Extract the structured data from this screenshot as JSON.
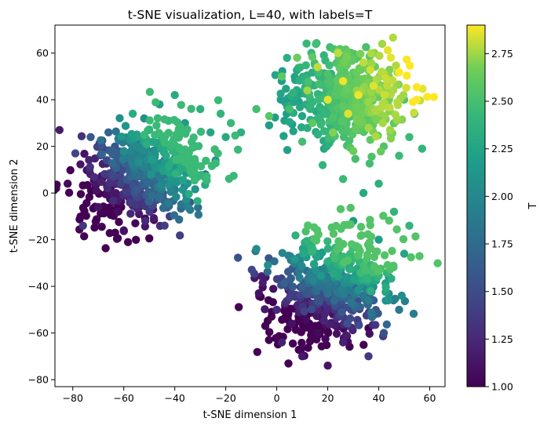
{
  "chart_data": {
    "type": "scatter",
    "title": "t-SNE visualization, L=40, with labels=T",
    "xlabel": "t-SNE dimension 1",
    "ylabel": "t-SNE dimension 2",
    "xlim": [
      -87,
      66
    ],
    "ylim": [
      -83,
      72
    ],
    "xticks": [
      -80,
      -60,
      -40,
      -20,
      0,
      20,
      40,
      60
    ],
    "yticks": [
      -80,
      -60,
      -40,
      -20,
      0,
      20,
      40,
      60
    ],
    "xtick_labels": [
      "−80",
      "−60",
      "−40",
      "−20",
      "0",
      "20",
      "40",
      "60"
    ],
    "ytick_labels": [
      "−80",
      "−60",
      "−40",
      "−20",
      "0",
      "20",
      "40",
      "60"
    ],
    "grid": false,
    "colormap": "viridis",
    "colorbar": {
      "label": "T",
      "range": [
        1.0,
        2.9
      ],
      "ticks": [
        1.0,
        1.25,
        1.5,
        1.75,
        2.0,
        2.25,
        2.5,
        2.75
      ],
      "tick_labels": [
        "1.00",
        "1.25",
        "1.50",
        "1.75",
        "2.00",
        "2.25",
        "2.50",
        "2.75"
      ]
    },
    "clusters": [
      {
        "center": [
          -52,
          8
        ],
        "spread": [
          15,
          12
        ],
        "rotation_deg": 28,
        "color_value_range": [
          1.0,
          2.45
        ],
        "gradient_direction": [
          0.75,
          0.66
        ]
      },
      {
        "center": [
          28,
          42
        ],
        "spread": [
          13,
          11
        ],
        "rotation_deg": 0,
        "color_value_range": [
          2.2,
          2.9
        ],
        "gradient_direction": [
          0.5,
          0.1
        ]
      },
      {
        "center": [
          22,
          -40
        ],
        "spread": [
          13,
          15
        ],
        "rotation_deg": -55,
        "color_value_range": [
          1.0,
          2.55
        ],
        "gradient_direction": [
          0.45,
          0.89
        ]
      }
    ],
    "points": [
      [
        -82,
        4,
        1.05
      ],
      [
        -79,
        17,
        1.45
      ],
      [
        -76,
        -14,
        1.35
      ],
      [
        -73,
        24,
        1.6
      ],
      [
        -70,
        -6,
        1.12
      ],
      [
        -66,
        26,
        1.7
      ],
      [
        -64,
        -2,
        1.08
      ],
      [
        -62,
        12,
        1.4
      ],
      [
        -60,
        -16,
        1.1
      ],
      [
        -58,
        22,
        1.75
      ],
      [
        -56,
        4,
        1.25
      ],
      [
        -54,
        -9,
        1.15
      ],
      [
        -52,
        32,
        2.05
      ],
      [
        -50,
        14,
        1.7
      ],
      [
        -48,
        0,
        1.45
      ],
      [
        -46,
        38,
        2.2
      ],
      [
        -44,
        24,
        1.95
      ],
      [
        -42,
        -10,
        1.4
      ],
      [
        -40,
        42,
        2.3
      ],
      [
        -38,
        10,
        1.8
      ],
      [
        -36,
        30,
        2.15
      ],
      [
        -34,
        -4,
        1.6
      ],
      [
        -32,
        20,
        2.0
      ],
      [
        -30,
        36,
        2.35
      ],
      [
        -28,
        8,
        1.85
      ],
      [
        -26,
        26,
        2.25
      ],
      [
        -24,
        14,
        2.1
      ],
      [
        -22,
        34,
        2.4
      ],
      [
        -20,
        24,
        2.3
      ],
      [
        -18,
        30,
        2.45
      ],
      [
        -14,
        26,
        2.35
      ],
      [
        -8,
        36,
        2.5
      ],
      [
        -3,
        33,
        2.6
      ],
      [
        2,
        50,
        2.6
      ],
      [
        5,
        36,
        2.5
      ],
      [
        8,
        58,
        2.65
      ],
      [
        10,
        22,
        2.5
      ],
      [
        12,
        44,
        2.75
      ],
      [
        14,
        30,
        2.6
      ],
      [
        16,
        54,
        2.8
      ],
      [
        18,
        12,
        2.4
      ],
      [
        20,
        40,
        2.85
      ],
      [
        22,
        26,
        2.7
      ],
      [
        24,
        60,
        2.8
      ],
      [
        26,
        48,
        2.88
      ],
      [
        28,
        34,
        2.85
      ],
      [
        30,
        18,
        2.65
      ],
      [
        32,
        42,
        2.88
      ],
      [
        34,
        56,
        2.8
      ],
      [
        36,
        28,
        2.75
      ],
      [
        38,
        46,
        2.85
      ],
      [
        40,
        36,
        2.75
      ],
      [
        42,
        20,
        2.55
      ],
      [
        44,
        50,
        2.7
      ],
      [
        46,
        30,
        2.6
      ],
      [
        48,
        16,
        2.45
      ],
      [
        50,
        40,
        2.55
      ],
      [
        52,
        24,
        2.45
      ],
      [
        54,
        34,
        2.5
      ],
      [
        57,
        19,
        2.4
      ],
      [
        26,
        6,
        2.45
      ],
      [
        34,
        0,
        2.3
      ],
      [
        40,
        4,
        2.35
      ],
      [
        0,
        -50,
        1.25
      ],
      [
        2,
        -64,
        1.2
      ],
      [
        4,
        -40,
        1.45
      ],
      [
        6,
        -56,
        1.1
      ],
      [
        8,
        -30,
        1.6
      ],
      [
        10,
        -70,
        1.15
      ],
      [
        12,
        -46,
        1.2
      ],
      [
        14,
        -20,
        1.8
      ],
      [
        16,
        -60,
        1.05
      ],
      [
        18,
        -36,
        1.5
      ],
      [
        20,
        -74,
        1.12
      ],
      [
        22,
        -52,
        1.08
      ],
      [
        24,
        -26,
        1.9
      ],
      [
        26,
        -64,
        1.2
      ],
      [
        28,
        -42,
        1.55
      ],
      [
        30,
        -12,
        2.15
      ],
      [
        32,
        -56,
        1.3
      ],
      [
        34,
        -30,
        1.9
      ],
      [
        36,
        -70,
        1.35
      ],
      [
        38,
        -46,
        1.65
      ],
      [
        40,
        -20,
        2.2
      ],
      [
        42,
        -60,
        1.55
      ],
      [
        44,
        -36,
        2.0
      ],
      [
        46,
        -8,
        2.4
      ],
      [
        48,
        -50,
        1.85
      ],
      [
        50,
        -26,
        2.25
      ],
      [
        49,
        -44,
        2.05
      ],
      [
        52,
        -14,
        2.4
      ]
    ]
  }
}
